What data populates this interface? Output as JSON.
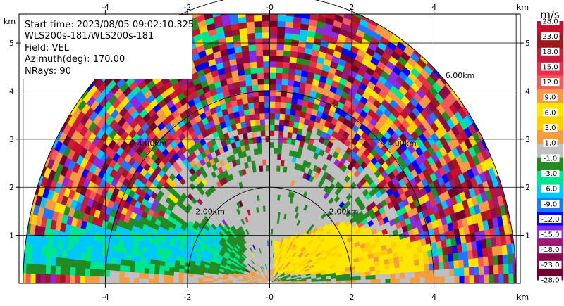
{
  "info": {
    "start_time": "Start time: 2023/08/05 09:02:10.325",
    "instrument": "WLS200s-181/WLS200s-181",
    "field": "Field: VEL",
    "azimuth": "Azimuth(deg): 170.00",
    "nrays": "NRays: 90"
  },
  "chart_data": {
    "type": "heatmap",
    "projection": "RHI",
    "title": "",
    "xlabel": "km",
    "ylabel": "km",
    "xlim": [
      -6.1,
      6.1
    ],
    "ylim": [
      0,
      5.6
    ],
    "x_ticks": [
      -4,
      -2,
      0,
      2,
      4
    ],
    "x_tick_labels": [
      "-4",
      "-2",
      "-0",
      "2",
      "4"
    ],
    "y_ticks": [
      1,
      2,
      3,
      4,
      5
    ],
    "y_tick_labels": [
      "1",
      "2",
      "3",
      "4",
      "5"
    ],
    "grid": true,
    "range_rings_km": [
      2,
      4,
      6
    ],
    "range_ring_labels": [
      "2.00km",
      "4.00km",
      "6.00km"
    ],
    "max_range_km": 6.0,
    "nrays": 90,
    "colorbar": {
      "unit": "m/s",
      "tick_labels": [
        "28.0",
        "23.0",
        "18.0",
        "15.0",
        "12.0",
        "9.0",
        "6.0",
        "3.0",
        "1.0",
        "-1.0",
        "-3.0",
        "-6.0",
        "-9.0",
        "-12.0",
        "-15.0",
        "-18.0",
        "-23.0",
        "-28.0"
      ],
      "colors": [
        "#c8102e",
        "#9b1b1b",
        "#c81e3c",
        "#e8304a",
        "#f55a5a",
        "#f59a46",
        "#ffe600",
        "#ffd000",
        "#f39c40",
        "#c0c0c0",
        "#228b22",
        "#00e68c",
        "#00c8ff",
        "#1e78ff",
        "#0000ff",
        "#8a2be2",
        "#9b1b6e",
        "#8b0a4a",
        "#700030"
      ]
    },
    "features": [
      {
        "name": "low-velocity core",
        "range_km": [
          0,
          3.0
        ],
        "value_mps": 0
      },
      {
        "name": "positive band",
        "x_km": [
          0.1,
          3.9
        ],
        "height_km": [
          0.2,
          1.3
        ],
        "value_mps": 6.0
      },
      {
        "name": "negative band",
        "x_km": [
          -6.0,
          -0.6
        ],
        "height_km": [
          0.2,
          1.4
        ],
        "value_mps": -9.0
      }
    ]
  }
}
